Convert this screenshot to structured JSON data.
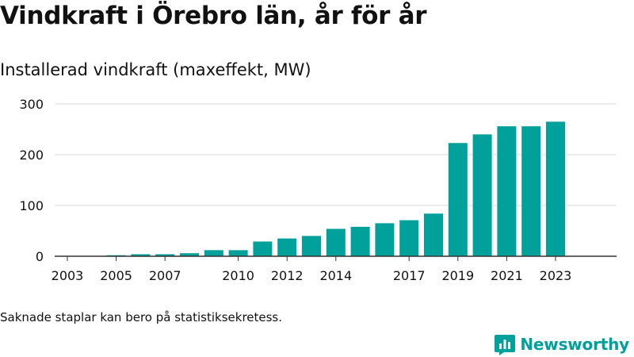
{
  "title": "Vindkraft i Örebro län, år för år",
  "subtitle": "Installerad vindkraft (maxeffekt, MW)",
  "note": "Saknade staplar kan bero på statistiksekretess.",
  "brand": {
    "name": "Newsworthy",
    "icon": "bar-chart-logo-icon",
    "color": "#00a19a"
  },
  "chart_data": {
    "type": "bar",
    "title": "",
    "xlabel": "",
    "ylabel": "",
    "bar_color": "#00a19a",
    "grid": true,
    "ylim": [
      0,
      300
    ],
    "yticks": [
      0,
      100,
      200,
      300
    ],
    "xtick_labels": [
      "2003",
      "2005",
      "2007",
      "2010",
      "2012",
      "2014",
      "2017",
      "2019",
      "2021",
      "2023"
    ],
    "categories": [
      "2003",
      "2004",
      "2005",
      "2006",
      "2007",
      "2008",
      "2009",
      "2010",
      "2011",
      "2012",
      "2013",
      "2014",
      "2015",
      "2016",
      "2017",
      "2018",
      "2019",
      "2020",
      "2021",
      "2022",
      "2023"
    ],
    "values": [
      0.5,
      0.5,
      2,
      4,
      4,
      6,
      12,
      12,
      29,
      35,
      40,
      54,
      58,
      65,
      71,
      84,
      223,
      240,
      256,
      256,
      265
    ]
  }
}
